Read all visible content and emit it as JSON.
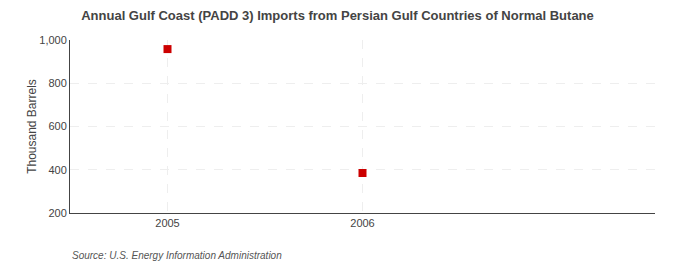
{
  "chart_data": {
    "type": "scatter",
    "title": "Annual Gulf Coast (PADD 3) Imports from Persian Gulf Countries of Normal Butane",
    "y_label": "Thousand Barrels",
    "annotation": "Source: U.S. Energy Information Administration",
    "x": [
      2005,
      2006
    ],
    "values": [
      958,
      385
    ],
    "color": "#cc0000",
    "marker": "square",
    "xlim": [
      2004.5,
      2007.5
    ],
    "xticks": [
      2005,
      2006
    ],
    "ylim": [
      200,
      1000
    ],
    "yticks": [
      200,
      400,
      600,
      800,
      {
        "value": 1000,
        "label": "1,000"
      }
    ],
    "grid": true
  }
}
